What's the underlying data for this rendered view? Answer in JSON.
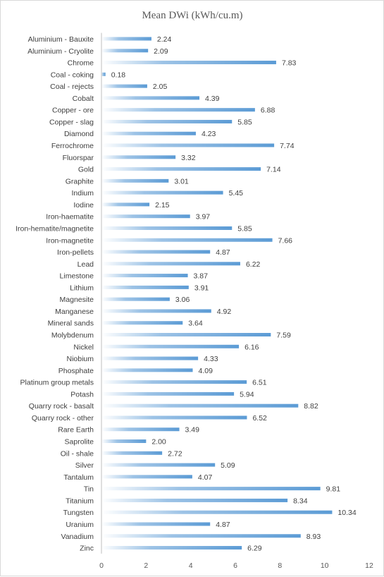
{
  "chart_data": {
    "type": "bar",
    "orientation": "horizontal",
    "title": "Mean DWi (kWh/cu.m)",
    "xlim": [
      0,
      12
    ],
    "xticks": [
      0,
      2,
      4,
      6,
      8,
      10,
      12
    ],
    "grid": false,
    "legend": "none",
    "bar_color": "#5b9bd5",
    "categories": [
      "Aluminium - Bauxite",
      "Aluminium - Cryolite",
      "Chrome",
      "Coal - coking",
      "Coal - rejects",
      "Cobalt",
      "Copper - ore",
      "Copper - slag",
      "Diamond",
      "Ferrochrome",
      "Fluorspar",
      "Gold",
      "Graphite",
      "Indium",
      "Iodine",
      "Iron-haematite",
      "Iron-hematite/magnetite",
      "Iron-magnetite",
      "Iron-pellets",
      "Lead",
      "Limestone",
      "Lithium",
      "Magnesite",
      "Manganese",
      "Mineral sands",
      "Molybdenum",
      "Nickel",
      "Niobium",
      "Phosphate",
      "Platinum group metals",
      "Potash",
      "Quarry rock - basalt",
      "Quarry rock - other",
      "Rare Earth",
      "Saprolite",
      "Oil - shale",
      "Silver",
      "Tantalum",
      "Tin",
      "Titanium",
      "Tungsten",
      "Uranium",
      "Vanadium",
      "Zinc"
    ],
    "values": [
      2.24,
      2.09,
      7.83,
      0.18,
      2.05,
      4.39,
      6.88,
      5.85,
      4.23,
      7.74,
      3.32,
      7.14,
      3.01,
      5.45,
      2.15,
      3.97,
      5.85,
      7.66,
      4.87,
      6.22,
      3.87,
      3.91,
      3.06,
      4.92,
      3.64,
      7.59,
      6.16,
      4.33,
      4.09,
      6.51,
      5.94,
      8.82,
      6.52,
      3.49,
      2.0,
      2.72,
      5.09,
      4.07,
      9.81,
      8.34,
      10.34,
      4.87,
      8.93,
      6.29
    ],
    "value_labels": [
      "2.24",
      "2.09",
      "7.83",
      "0.18",
      "2.05",
      "4.39",
      "6.88",
      "5.85",
      "4.23",
      "7.74",
      "3.32",
      "7.14",
      "3.01",
      "5.45",
      "2.15",
      "3.97",
      "5.85",
      "7.66",
      "4.87",
      "6.22",
      "3.87",
      "3.91",
      "3.06",
      "4.92",
      "3.64",
      "7.59",
      "6.16",
      "4.33",
      "4.09",
      "6.51",
      "5.94",
      "8.82",
      "6.52",
      "3.49",
      "2.00",
      "2.72",
      "5.09",
      "4.07",
      "9.81",
      "8.34",
      "10.34",
      "4.87",
      "8.93",
      "6.29"
    ]
  }
}
